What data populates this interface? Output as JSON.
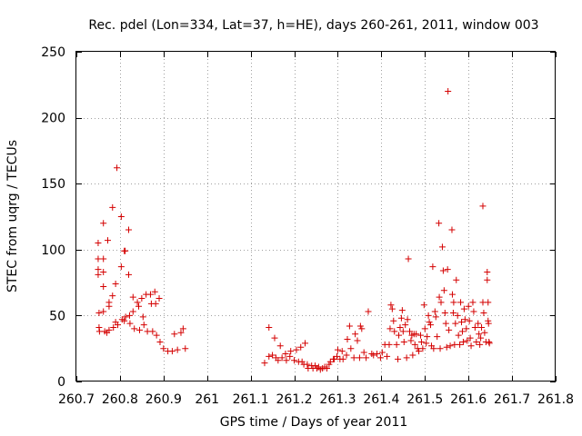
{
  "chart_data": {
    "type": "scatter",
    "title": "Rec. pdel (Lon=334, Lat=37, h=HE), days 260-261, 2011, window 003",
    "xlabel": "GPS time / Days of year 2011",
    "ylabel": "STEC from uqrg / TECUs",
    "xlim": [
      260.7,
      261.8
    ],
    "ylim": [
      0,
      250
    ],
    "x_ticks": [
      260.7,
      260.8,
      260.9,
      261.0,
      261.1,
      261.2,
      261.3,
      261.4,
      261.5,
      261.6,
      261.7,
      261.8
    ],
    "x_tick_labels": [
      "260.7",
      "260.8",
      "260.9",
      "261",
      "261.1",
      "261.2",
      "261.3",
      "261.4",
      "261.5",
      "261.6",
      "261.7",
      "261.8"
    ],
    "y_ticks": [
      0,
      50,
      100,
      150,
      200,
      250
    ],
    "y_tick_labels": [
      "0",
      "50",
      "100",
      "150",
      "200",
      "250"
    ],
    "grid": true,
    "marker": "+",
    "color": "#d40000",
    "series": [
      {
        "name": "STEC",
        "points": [
          [
            260.75,
            105
          ],
          [
            260.75,
            93
          ],
          [
            260.75,
            85
          ],
          [
            260.75,
            81
          ],
          [
            260.752,
            52
          ],
          [
            260.752,
            41
          ],
          [
            260.753,
            38
          ],
          [
            260.762,
            120
          ],
          [
            260.762,
            93
          ],
          [
            260.762,
            83
          ],
          [
            260.762,
            72
          ],
          [
            260.762,
            53
          ],
          [
            260.765,
            38
          ],
          [
            260.77,
            37
          ],
          [
            260.772,
            107
          ],
          [
            260.775,
            60
          ],
          [
            260.775,
            57
          ],
          [
            260.775,
            39
          ],
          [
            260.783,
            132
          ],
          [
            260.783,
            65
          ],
          [
            260.785,
            41
          ],
          [
            260.79,
            74
          ],
          [
            260.79,
            45
          ],
          [
            260.793,
            162
          ],
          [
            260.795,
            43
          ],
          [
            260.803,
            125
          ],
          [
            260.803,
            87
          ],
          [
            260.805,
            47
          ],
          [
            260.81,
            99
          ],
          [
            260.81,
            46
          ],
          [
            260.812,
            99
          ],
          [
            260.813,
            49
          ],
          [
            260.82,
            115
          ],
          [
            260.82,
            81
          ],
          [
            260.822,
            50
          ],
          [
            260.823,
            44
          ],
          [
            260.83,
            64
          ],
          [
            260.83,
            53
          ],
          [
            260.833,
            40
          ],
          [
            260.84,
            60
          ],
          [
            260.843,
            57
          ],
          [
            260.845,
            39
          ],
          [
            260.85,
            63
          ],
          [
            260.853,
            49
          ],
          [
            260.855,
            43
          ],
          [
            260.86,
            66
          ],
          [
            260.863,
            38
          ],
          [
            260.87,
            66
          ],
          [
            260.872,
            59
          ],
          [
            260.875,
            38
          ],
          [
            260.88,
            68
          ],
          [
            260.882,
            59
          ],
          [
            260.884,
            35
          ],
          [
            260.89,
            63
          ],
          [
            260.892,
            30
          ],
          [
            260.9,
            25
          ],
          [
            260.91,
            23
          ],
          [
            260.92,
            23
          ],
          [
            260.925,
            36
          ],
          [
            260.932,
            24
          ],
          [
            260.94,
            37
          ],
          [
            260.945,
            40
          ],
          [
            260.95,
            25
          ],
          [
            261.132,
            14
          ],
          [
            261.142,
            19
          ],
          [
            261.142,
            41
          ],
          [
            261.15,
            20
          ],
          [
            261.155,
            33
          ],
          [
            261.158,
            18
          ],
          [
            261.163,
            16
          ],
          [
            261.168,
            27
          ],
          [
            261.172,
            18
          ],
          [
            261.18,
            21
          ],
          [
            261.182,
            16
          ],
          [
            261.19,
            19
          ],
          [
            261.192,
            23
          ],
          [
            261.2,
            16
          ],
          [
            261.205,
            24
          ],
          [
            261.21,
            15
          ],
          [
            261.215,
            26
          ],
          [
            261.218,
            15
          ],
          [
            261.222,
            13
          ],
          [
            261.225,
            29
          ],
          [
            261.23,
            13
          ],
          [
            261.232,
            10
          ],
          [
            261.24,
            12
          ],
          [
            261.243,
            10
          ],
          [
            261.248,
            12
          ],
          [
            261.252,
            10
          ],
          [
            261.256,
            11
          ],
          [
            261.26,
            9
          ],
          [
            261.265,
            10
          ],
          [
            261.27,
            11
          ],
          [
            261.275,
            10
          ],
          [
            261.28,
            13
          ],
          [
            261.283,
            15
          ],
          [
            261.29,
            17
          ],
          [
            261.292,
            17
          ],
          [
            261.298,
            19
          ],
          [
            261.3,
            24
          ],
          [
            261.305,
            17
          ],
          [
            261.31,
            23
          ],
          [
            261.312,
            17
          ],
          [
            261.32,
            20
          ],
          [
            261.322,
            32
          ],
          [
            261.327,
            42
          ],
          [
            261.33,
            25
          ],
          [
            261.337,
            18
          ],
          [
            261.34,
            36
          ],
          [
            261.345,
            31
          ],
          [
            261.35,
            18
          ],
          [
            261.352,
            42
          ],
          [
            261.355,
            40
          ],
          [
            261.36,
            22
          ],
          [
            261.365,
            18
          ],
          [
            261.37,
            53
          ],
          [
            261.378,
            21
          ],
          [
            261.382,
            20
          ],
          [
            261.39,
            21
          ],
          [
            261.398,
            18
          ],
          [
            261.402,
            22
          ],
          [
            261.408,
            28
          ],
          [
            261.413,
            19
          ],
          [
            261.418,
            28
          ],
          [
            261.42,
            40
          ],
          [
            261.422,
            58
          ],
          [
            261.425,
            55
          ],
          [
            261.428,
            46
          ],
          [
            261.43,
            38
          ],
          [
            261.435,
            28
          ],
          [
            261.438,
            17
          ],
          [
            261.44,
            35
          ],
          [
            261.443,
            41
          ],
          [
            261.446,
            48
          ],
          [
            261.448,
            54
          ],
          [
            261.45,
            38
          ],
          [
            261.452,
            30
          ],
          [
            261.455,
            43
          ],
          [
            261.458,
            18
          ],
          [
            261.46,
            47
          ],
          [
            261.462,
            93
          ],
          [
            261.465,
            38
          ],
          [
            261.468,
            31
          ],
          [
            261.47,
            35
          ],
          [
            261.472,
            20
          ],
          [
            261.475,
            36
          ],
          [
            261.477,
            28
          ],
          [
            261.48,
            36
          ],
          [
            261.483,
            25
          ],
          [
            261.486,
            23
          ],
          [
            261.49,
            35
          ],
          [
            261.492,
            30
          ],
          [
            261.495,
            25
          ],
          [
            261.498,
            58
          ],
          [
            261.5,
            40
          ],
          [
            261.503,
            29
          ],
          [
            261.505,
            34
          ],
          [
            261.508,
            50
          ],
          [
            261.51,
            45
          ],
          [
            261.513,
            43
          ],
          [
            261.515,
            27
          ],
          [
            261.518,
            87
          ],
          [
            261.52,
            25
          ],
          [
            261.523,
            53
          ],
          [
            261.525,
            49
          ],
          [
            261.528,
            34
          ],
          [
            261.532,
            120
          ],
          [
            261.533,
            64
          ],
          [
            261.535,
            25
          ],
          [
            261.537,
            60
          ],
          [
            261.54,
            102
          ],
          [
            261.542,
            84
          ],
          [
            261.544,
            69
          ],
          [
            261.546,
            52
          ],
          [
            261.548,
            44
          ],
          [
            261.55,
            26
          ],
          [
            261.552,
            85
          ],
          [
            261.553,
            220
          ],
          [
            261.555,
            39
          ],
          [
            261.558,
            27
          ],
          [
            261.562,
            115
          ],
          [
            261.563,
            66
          ],
          [
            261.565,
            52
          ],
          [
            261.566,
            60
          ],
          [
            261.568,
            28
          ],
          [
            261.57,
            44
          ],
          [
            261.572,
            77
          ],
          [
            261.575,
            50
          ],
          [
            261.577,
            35
          ],
          [
            261.58,
            28
          ],
          [
            261.582,
            60
          ],
          [
            261.584,
            45
          ],
          [
            261.586,
            38
          ],
          [
            261.588,
            30
          ],
          [
            261.59,
            55
          ],
          [
            261.592,
            47
          ],
          [
            261.595,
            40
          ],
          [
            261.597,
            31
          ],
          [
            261.6,
            57
          ],
          [
            261.602,
            46
          ],
          [
            261.604,
            33
          ],
          [
            261.606,
            27
          ],
          [
            261.61,
            60
          ],
          [
            261.612,
            53
          ],
          [
            261.615,
            41
          ],
          [
            261.618,
            30
          ],
          [
            261.622,
            44
          ],
          [
            261.624,
            36
          ],
          [
            261.626,
            28
          ],
          [
            261.628,
            33
          ],
          [
            261.63,
            41
          ],
          [
            261.633,
            133
          ],
          [
            261.633,
            60
          ],
          [
            261.635,
            52
          ],
          [
            261.637,
            37
          ],
          [
            261.64,
            30
          ],
          [
            261.643,
            83
          ],
          [
            261.643,
            77
          ],
          [
            261.645,
            60
          ],
          [
            261.645,
            46
          ],
          [
            261.646,
            44
          ],
          [
            261.647,
            30
          ],
          [
            261.648,
            29
          ]
        ]
      }
    ]
  }
}
